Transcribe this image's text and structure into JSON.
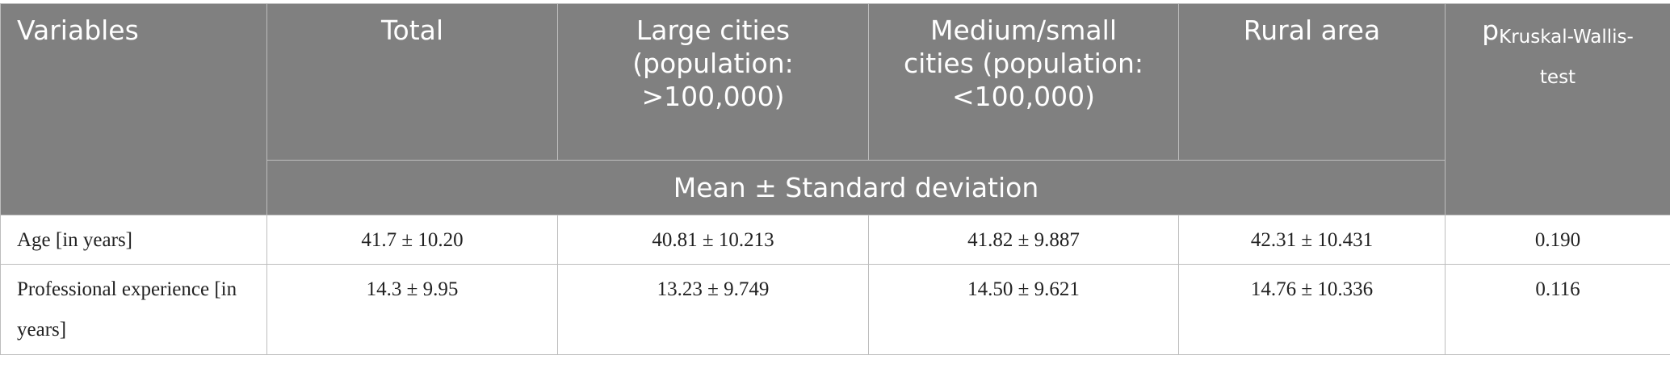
{
  "header": {
    "columns": [
      "Variables",
      "Total",
      "Large cities (population: >100,000)",
      "Medium/small cities (population: <100,000)",
      "Rural area"
    ],
    "p_column": {
      "main": "p",
      "subscript": "Kruskal-Wallis-test"
    },
    "subheader": "Mean ± Standard deviation"
  },
  "table": {
    "rows": [
      [
        "Age [in years]",
        "41.7 ± 10.20",
        "40.81 ± 10.213",
        "41.82 ± 9.887",
        "42.31 ± 10.431",
        "0.190"
      ],
      [
        "Professional experience [in years]",
        "14.3 ± 9.95",
        "13.23 ± 9.749",
        "14.50 ± 9.621",
        "14.76 ± 10.336",
        "0.116"
      ]
    ]
  }
}
